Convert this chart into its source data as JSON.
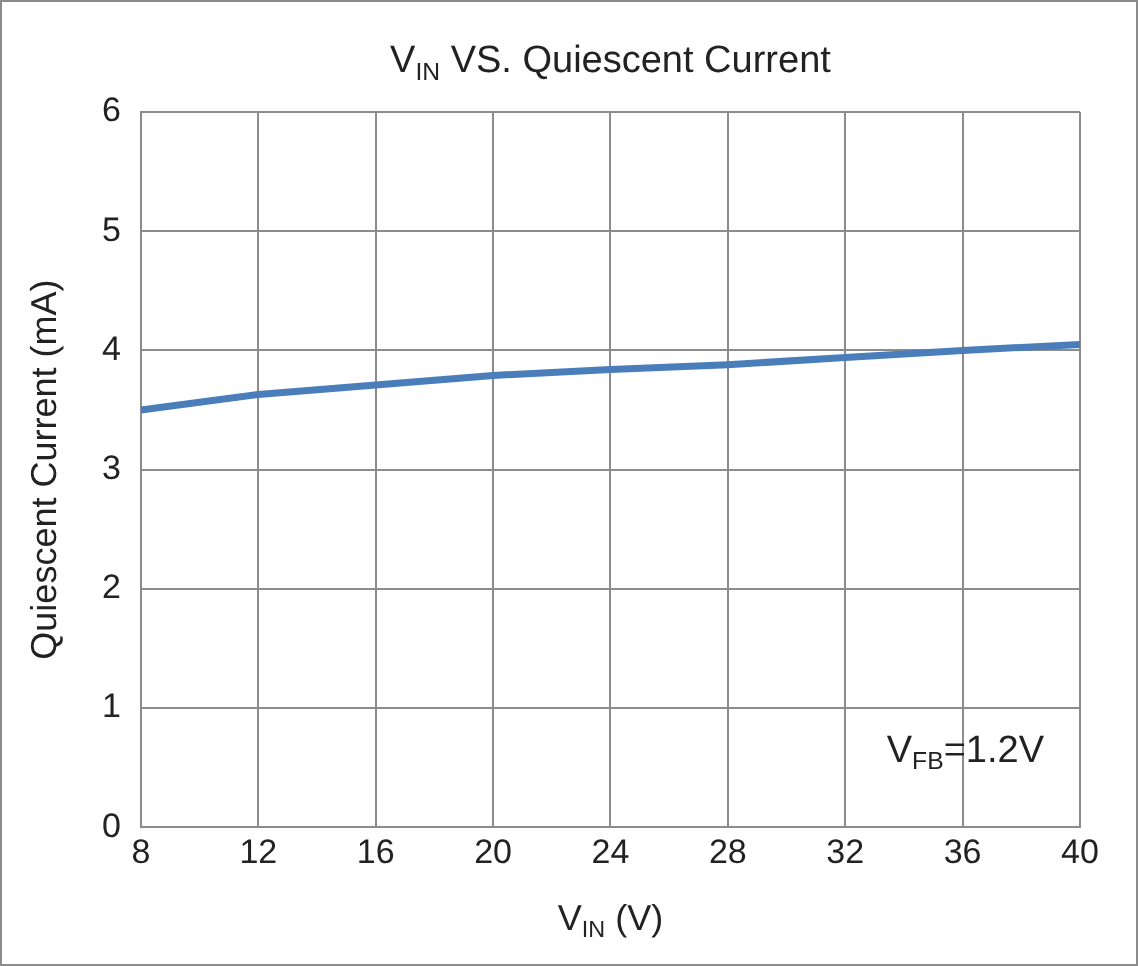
{
  "chart_data": {
    "type": "line",
    "title": "V$_{IN}$ VS. Quiescent Current",
    "xlabel": "V$_{IN}$ (V)",
    "ylabel": "Quiescent Current (mA)",
    "annotations": [
      "V$_{FB}$=1.2V"
    ],
    "x": [
      8,
      12,
      16,
      20,
      24,
      28,
      32,
      36,
      40
    ],
    "series": [
      {
        "color": "#4a7ebb",
        "values": [
          3.5,
          3.63,
          3.71,
          3.79,
          3.84,
          3.88,
          3.94,
          4.0,
          4.05
        ]
      }
    ],
    "xlim": [
      8,
      40
    ],
    "xticks": [
      8,
      12,
      16,
      20,
      24,
      28,
      32,
      36,
      40
    ],
    "ylim": [
      0,
      6
    ],
    "yticks": [
      0,
      1,
      2,
      3,
      4,
      5,
      6
    ],
    "grid": true,
    "legend": false,
    "marker": "none",
    "line_style": "solid"
  }
}
